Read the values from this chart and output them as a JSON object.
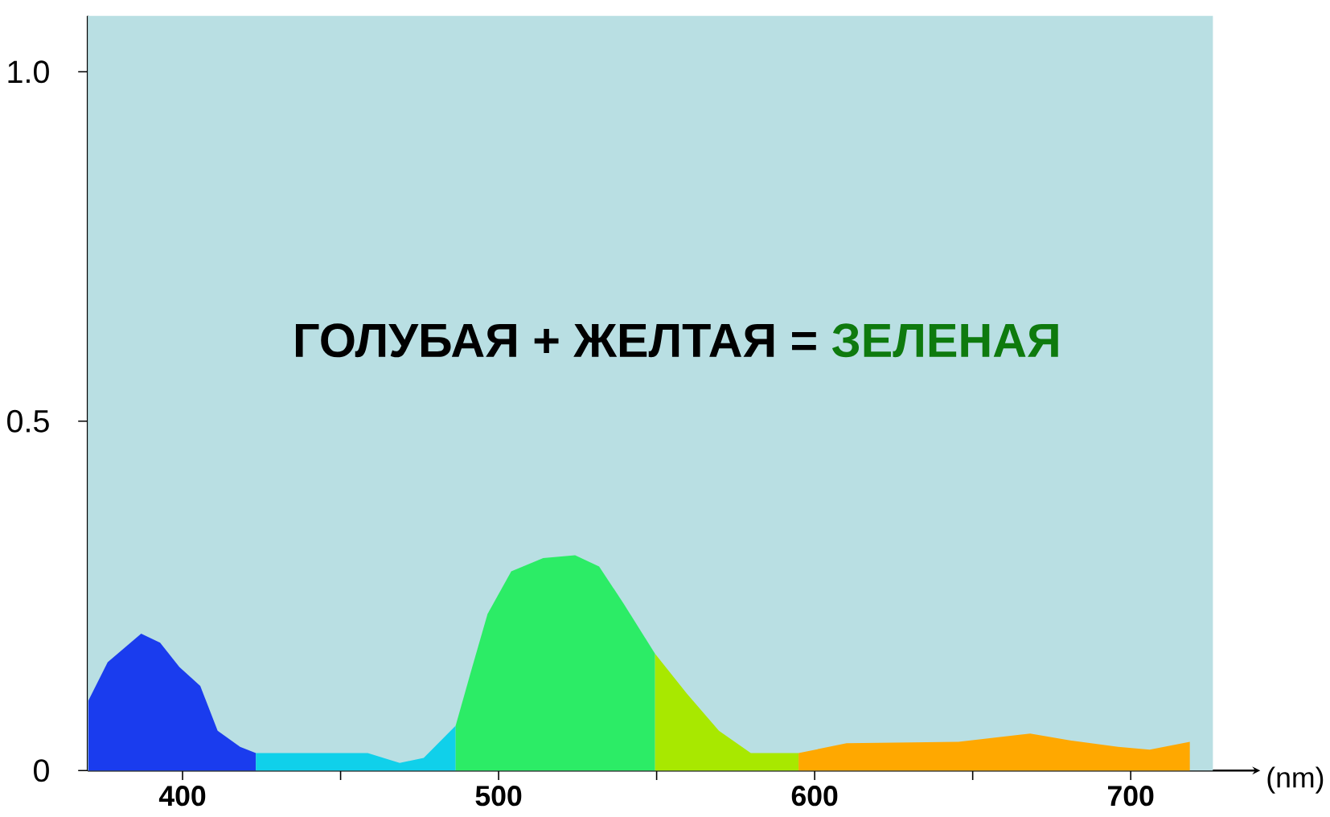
{
  "chart_data": {
    "type": "area",
    "annotations": [
      "ГОЛУБАЯ + ЖЕЛТАЯ =",
      "ЗЕЛЕНАЯ"
    ],
    "xlabel": "(nm)",
    "series": [
      {
        "color": "#1a3cee",
        "x": [
          370.2,
          376.3,
          386.9,
          392.9,
          399,
          405.6,
          411.1,
          418.2,
          423.2
        ],
        "values": [
          0.1,
          0.155,
          0.196,
          0.183,
          0.148,
          0.121,
          0.057,
          0.034,
          0.025
        ]
      },
      {
        "color": "#10d0ea",
        "x": [
          423.2,
          458.6,
          468.7,
          476.3,
          486.4
        ],
        "values": [
          0.025,
          0.025,
          0.011,
          0.018,
          0.064
        ]
      },
      {
        "color": "#2cec66",
        "x": [
          486.4,
          491.4,
          496.5,
          504,
          514.1,
          524.2,
          531.8,
          539.4,
          549.5
        ],
        "values": [
          0.064,
          0.144,
          0.224,
          0.285,
          0.304,
          0.308,
          0.292,
          0.24,
          0.167
        ]
      },
      {
        "color": "#a8e800",
        "x": [
          549.5,
          559.6,
          569.7,
          579.8,
          594.9
        ],
        "values": [
          0.167,
          0.11,
          0.057,
          0.025,
          0.025
        ]
      },
      {
        "color": "#ffa800",
        "x": [
          594.9,
          610.1,
          645.5,
          668.2,
          680.8,
          696,
          706,
          718.7
        ],
        "values": [
          0.025,
          0.039,
          0.041,
          0.053,
          0.043,
          0.034,
          0.03,
          0.041
        ]
      }
    ],
    "xlim": [
      370,
      741
    ],
    "ylim": [
      0,
      1.08
    ],
    "xticks": [
      400,
      {
        "value": 450,
        "label": null
      },
      500,
      {
        "value": 550,
        "label": null
      },
      600,
      {
        "value": 650,
        "label": null
      },
      700
    ],
    "yticks": [
      0,
      {
        "value": 0.5,
        "label": "0.5"
      },
      {
        "value": 1,
        "label": "1.0"
      }
    ],
    "bands": [
      {
        "axis": "x",
        "from": 370,
        "to": 726,
        "color": "#b9dfe3"
      }
    ],
    "grid": false,
    "marker": "none"
  }
}
